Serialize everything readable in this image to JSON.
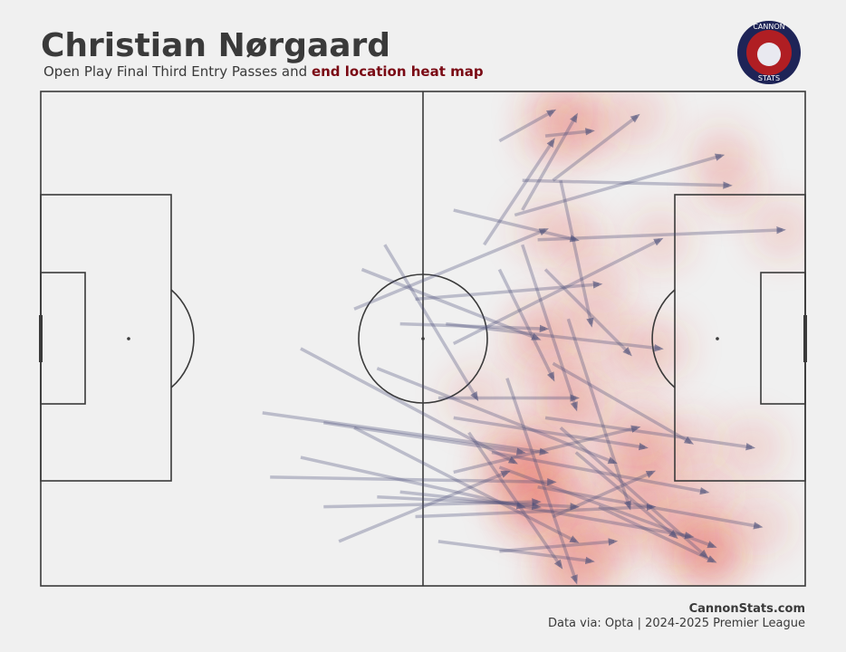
{
  "chart_data": {
    "type": "pass-map",
    "title": "Christian Nørgaard",
    "subtitle": "Open Play Final Third Entry Passes and",
    "subtitle_highlight": "end location heat map",
    "xlim": [
      0,
      100
    ],
    "ylim": [
      100,
      0
    ],
    "color": "#4a4f78",
    "heat_color": "#e8432c",
    "x": [
      60,
      66,
      63,
      58,
      63,
      62,
      67,
      54,
      65,
      41,
      42,
      45,
      49,
      54,
      60,
      63,
      66,
      47,
      53,
      34,
      29,
      37,
      30,
      34,
      37,
      39,
      44,
      44,
      41,
      49,
      52,
      54,
      56,
      59,
      60,
      63,
      65,
      66,
      68,
      70,
      60,
      52,
      61,
      67,
      73,
      67,
      54,
      47,
      68,
      69
    ],
    "y": [
      10,
      9,
      24,
      31,
      18,
      25,
      18,
      24,
      30,
      44,
      36,
      31,
      42,
      51,
      36,
      31,
      36,
      47,
      47,
      52,
      65,
      67,
      78,
      74,
      84,
      91,
      82,
      56,
      68,
      86,
      62,
      66,
      69,
      73,
      76,
      84,
      80,
      66,
      68,
      73,
      93,
      91,
      58,
      55,
      84,
      86,
      77,
      81,
      18,
      46
    ],
    "end_x": [
      67,
      72,
      70,
      67,
      90,
      89,
      78,
      70,
      97,
      66,
      65,
      57,
      73,
      81,
      67,
      70,
      77,
      66,
      81,
      62,
      66,
      63,
      67,
      63,
      65,
      61,
      70,
      75,
      70,
      80,
      70,
      79,
      68,
      87,
      88,
      85,
      94,
      93,
      87,
      83,
      75,
      72,
      70,
      85,
      88,
      80,
      78,
      65,
      72,
      77
    ],
    "end_y": [
      4,
      8,
      5,
      10,
      19,
      13,
      5,
      30,
      28,
      28,
      50,
      62,
      39,
      30,
      58,
      64,
      53,
      48,
      52,
      75,
      73,
      73,
      79,
      84,
      83,
      77,
      84,
      75,
      91,
      84,
      62,
      72,
      96,
      81,
      92,
      90,
      88,
      72,
      94,
      90,
      91,
      95,
      99,
      71,
      95,
      77,
      68,
      84,
      47,
      84
    ]
  },
  "logo": {
    "top": "CANNON",
    "bottom": "STATS"
  },
  "footer": {
    "site": "CannonStats.com",
    "source": "Data via: Opta | 2024-2025 Premier League"
  }
}
